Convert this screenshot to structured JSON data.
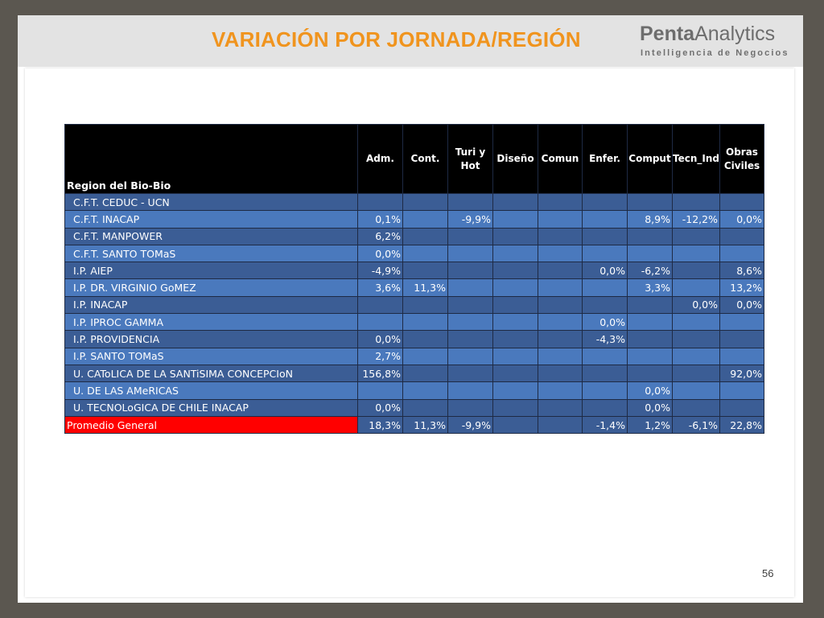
{
  "header": {
    "title": "VARIACIÓN POR JORNADA/REGIÓN",
    "logo_bold": "Penta",
    "logo_light": "Analytics",
    "logo_tagline": "Intelligencia de Negocios"
  },
  "table": {
    "region_label": "Region del Bio-Bio",
    "columns": [
      "Adm.",
      "Cont.",
      "Turi y Hot",
      "Diseño",
      "Comun",
      "Enfer.",
      "Comput",
      "Tecn_Ind",
      "Obras Civiles"
    ],
    "rows": [
      {
        "name": "C.F.T. CEDUC - UCN",
        "values": [
          "",
          "",
          "",
          "",
          "",
          "",
          "",
          "",
          ""
        ]
      },
      {
        "name": "C.F.T. INACAP",
        "values": [
          "0,1%",
          "",
          "-9,9%",
          "",
          "",
          "",
          "8,9%",
          "-12,2%",
          "0,0%"
        ]
      },
      {
        "name": "C.F.T. MANPOWER",
        "values": [
          "6,2%",
          "",
          "",
          "",
          "",
          "",
          "",
          "",
          ""
        ]
      },
      {
        "name": "C.F.T. SANTO TOMaS",
        "values": [
          "0,0%",
          "",
          "",
          "",
          "",
          "",
          "",
          "",
          ""
        ]
      },
      {
        "name": "I.P. AIEP",
        "values": [
          "-4,9%",
          "",
          "",
          "",
          "",
          "0,0%",
          "-6,2%",
          "",
          "8,6%"
        ]
      },
      {
        "name": "I.P. DR. VIRGINIO GoMEZ",
        "values": [
          "3,6%",
          "11,3%",
          "",
          "",
          "",
          "",
          "3,3%",
          "",
          "13,2%"
        ]
      },
      {
        "name": "I.P. INACAP",
        "values": [
          "",
          "",
          "",
          "",
          "",
          "",
          "",
          "0,0%",
          "0,0%"
        ]
      },
      {
        "name": "I.P. IPROC GAMMA",
        "values": [
          "",
          "",
          "",
          "",
          "",
          "0,0%",
          "",
          "",
          ""
        ]
      },
      {
        "name": "I.P. PROVIDENCIA",
        "values": [
          "0,0%",
          "",
          "",
          "",
          "",
          "-4,3%",
          "",
          "",
          ""
        ]
      },
      {
        "name": "I.P. SANTO TOMaS",
        "values": [
          "2,7%",
          "",
          "",
          "",
          "",
          "",
          "",
          "",
          ""
        ]
      },
      {
        "name": "U. CAToLICA DE LA SANTiSIMA CONCEPCIoN",
        "values": [
          "156,8%",
          "",
          "",
          "",
          "",
          "",
          "",
          "",
          "92,0%"
        ]
      },
      {
        "name": "U. DE LAS AMeRICAS",
        "values": [
          "",
          "",
          "",
          "",
          "",
          "",
          "0,0%",
          "",
          ""
        ]
      },
      {
        "name": "U. TECNOLoGICA DE CHILE INACAP",
        "values": [
          "0,0%",
          "",
          "",
          "",
          "",
          "",
          "0,0%",
          "",
          ""
        ]
      }
    ],
    "average": {
      "name": "Promedio General",
      "values": [
        "18,3%",
        "11,3%",
        "-9,9%",
        "",
        "",
        "-1,4%",
        "1,2%",
        "-6,1%",
        "22,8%"
      ]
    }
  },
  "footer": {
    "page_number": "56"
  },
  "colors": {
    "title": "#f0941e",
    "header_bg": "#000000",
    "row_dark": "#3b5d95",
    "row_light": "#4a79bd",
    "average_label_bg": "#ff0000"
  }
}
